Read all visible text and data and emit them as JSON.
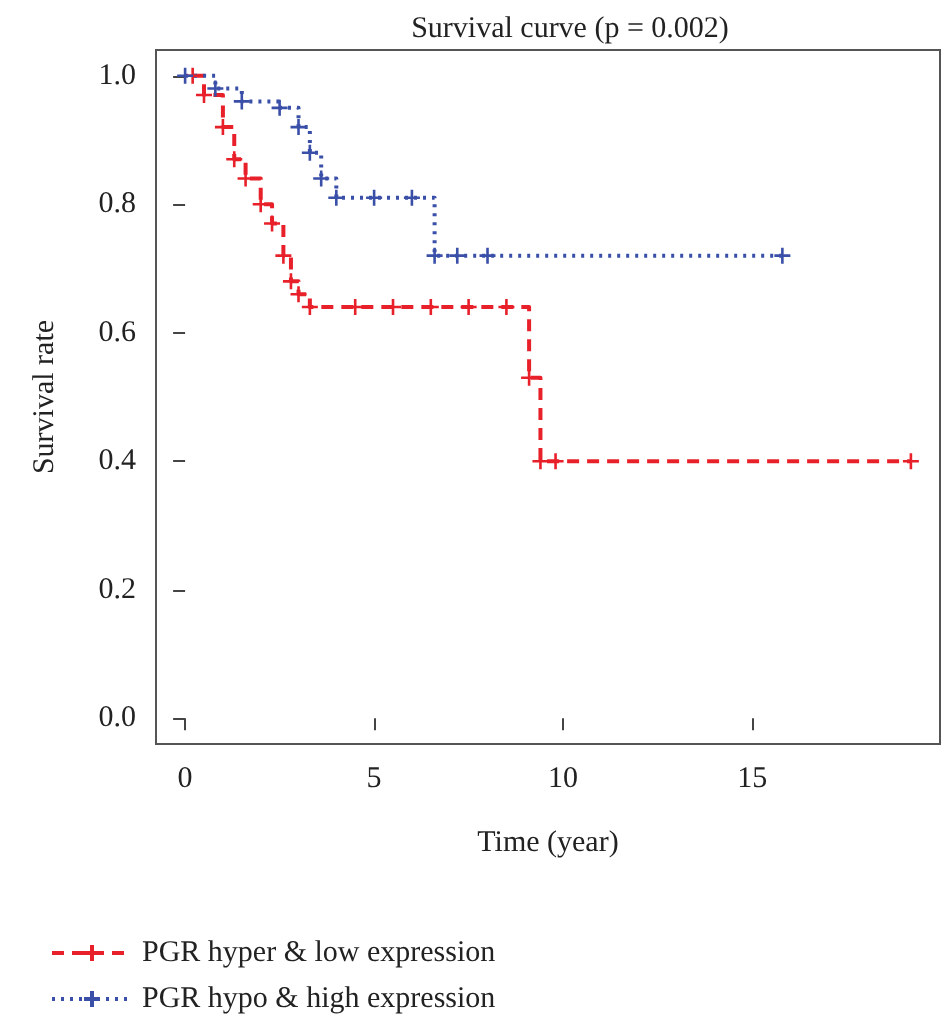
{
  "chart_data": {
    "type": "step",
    "title": "Survival curve (p = 0.002)",
    "xlabel": "Time (year)",
    "ylabel": "Survival rate",
    "xlim": [
      -0.77,
      19.97
    ],
    "ylim": [
      -0.04,
      1.04
    ],
    "xticks": [
      0,
      5,
      10,
      15
    ],
    "yticks": [
      {
        "value": 0,
        "label": "0.0"
      },
      {
        "value": 0.2,
        "label": "0.2"
      },
      {
        "value": 0.4,
        "label": "0.4"
      },
      {
        "value": 0.6,
        "label": "0.6"
      },
      {
        "value": 0.8,
        "label": "0.8"
      },
      {
        "value": 1,
        "label": "1.0"
      }
    ],
    "grid": false,
    "legend": "bottom left",
    "marker": "cross",
    "series": [
      {
        "name": "PGR hyper & low expression",
        "color": "#e8202a",
        "line_style": "dashed",
        "x": [
          0.2,
          0.5,
          1,
          1.3,
          1.6,
          2,
          2.3,
          2.6,
          2.8,
          3,
          3.3,
          4.5,
          5.5,
          6.5,
          7.5,
          8.5,
          9.1,
          9.4,
          9.8,
          19.2
        ],
        "values": [
          1,
          0.97,
          0.92,
          0.87,
          0.84,
          0.8,
          0.77,
          0.72,
          0.68,
          0.66,
          0.64,
          0.64,
          0.64,
          0.64,
          0.64,
          0.64,
          0.53,
          0.4,
          0.4,
          0.4
        ]
      },
      {
        "name": "PGR hypo & high expression",
        "color": "#3a4fa8",
        "line_style": "dotted",
        "x": [
          0,
          0.8,
          1.5,
          2.5,
          3,
          3.3,
          3.6,
          4,
          5,
          6,
          6.6,
          7.2,
          8,
          15.8
        ],
        "values": [
          1,
          0.98,
          0.96,
          0.95,
          0.92,
          0.88,
          0.84,
          0.81,
          0.81,
          0.81,
          0.72,
          0.72,
          0.72,
          0.72
        ]
      }
    ]
  }
}
